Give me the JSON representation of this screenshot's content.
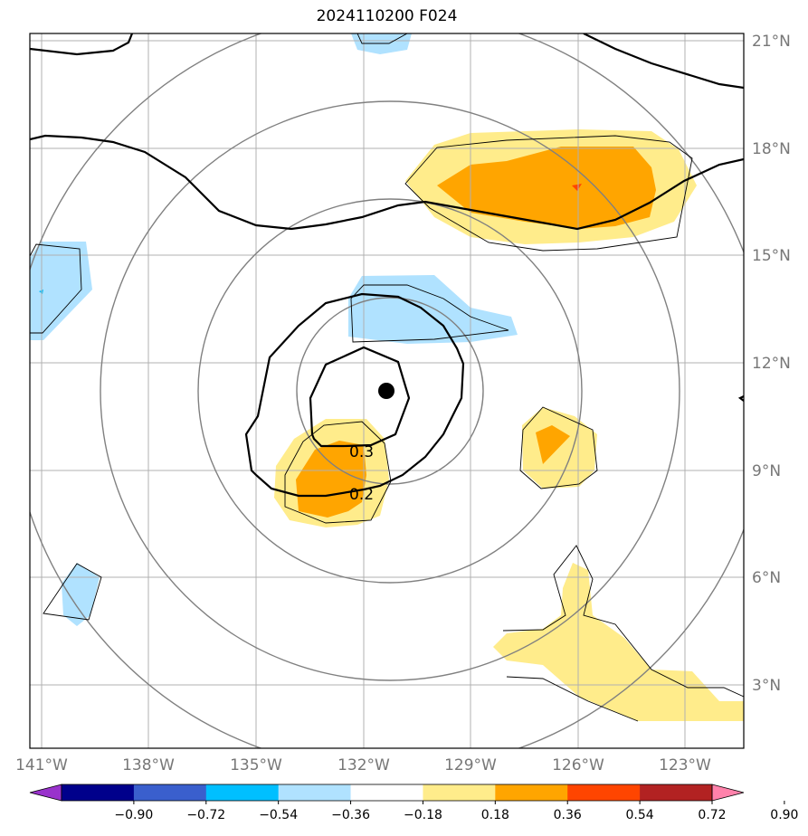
{
  "title": "2024110200 F024",
  "map": {
    "lon_labels": [
      "141°W",
      "138°W",
      "135°W",
      "132°W",
      "129°W",
      "126°W",
      "123°W"
    ],
    "lat_labels": [
      "21°N",
      "18°N",
      "15°N",
      "12°N",
      "9°N",
      "6°N",
      "3°N"
    ],
    "contour_labels": [
      "0.3",
      "0.2"
    ]
  },
  "colorbar": {
    "ticks": [
      "−0.90",
      "−0.72",
      "−0.54",
      "−0.36",
      "−0.18",
      "0.18",
      "0.36",
      "0.54",
      "0.72",
      "0.90"
    ],
    "colors": [
      "#9932CC",
      "#00008B",
      "#3A5FCD",
      "#00BFFF",
      "#B0E2FF",
      "#FFFFFF",
      "#FFEC8B",
      "#FFA500",
      "#FF4500",
      "#B22222",
      "#FF82AB"
    ]
  }
}
